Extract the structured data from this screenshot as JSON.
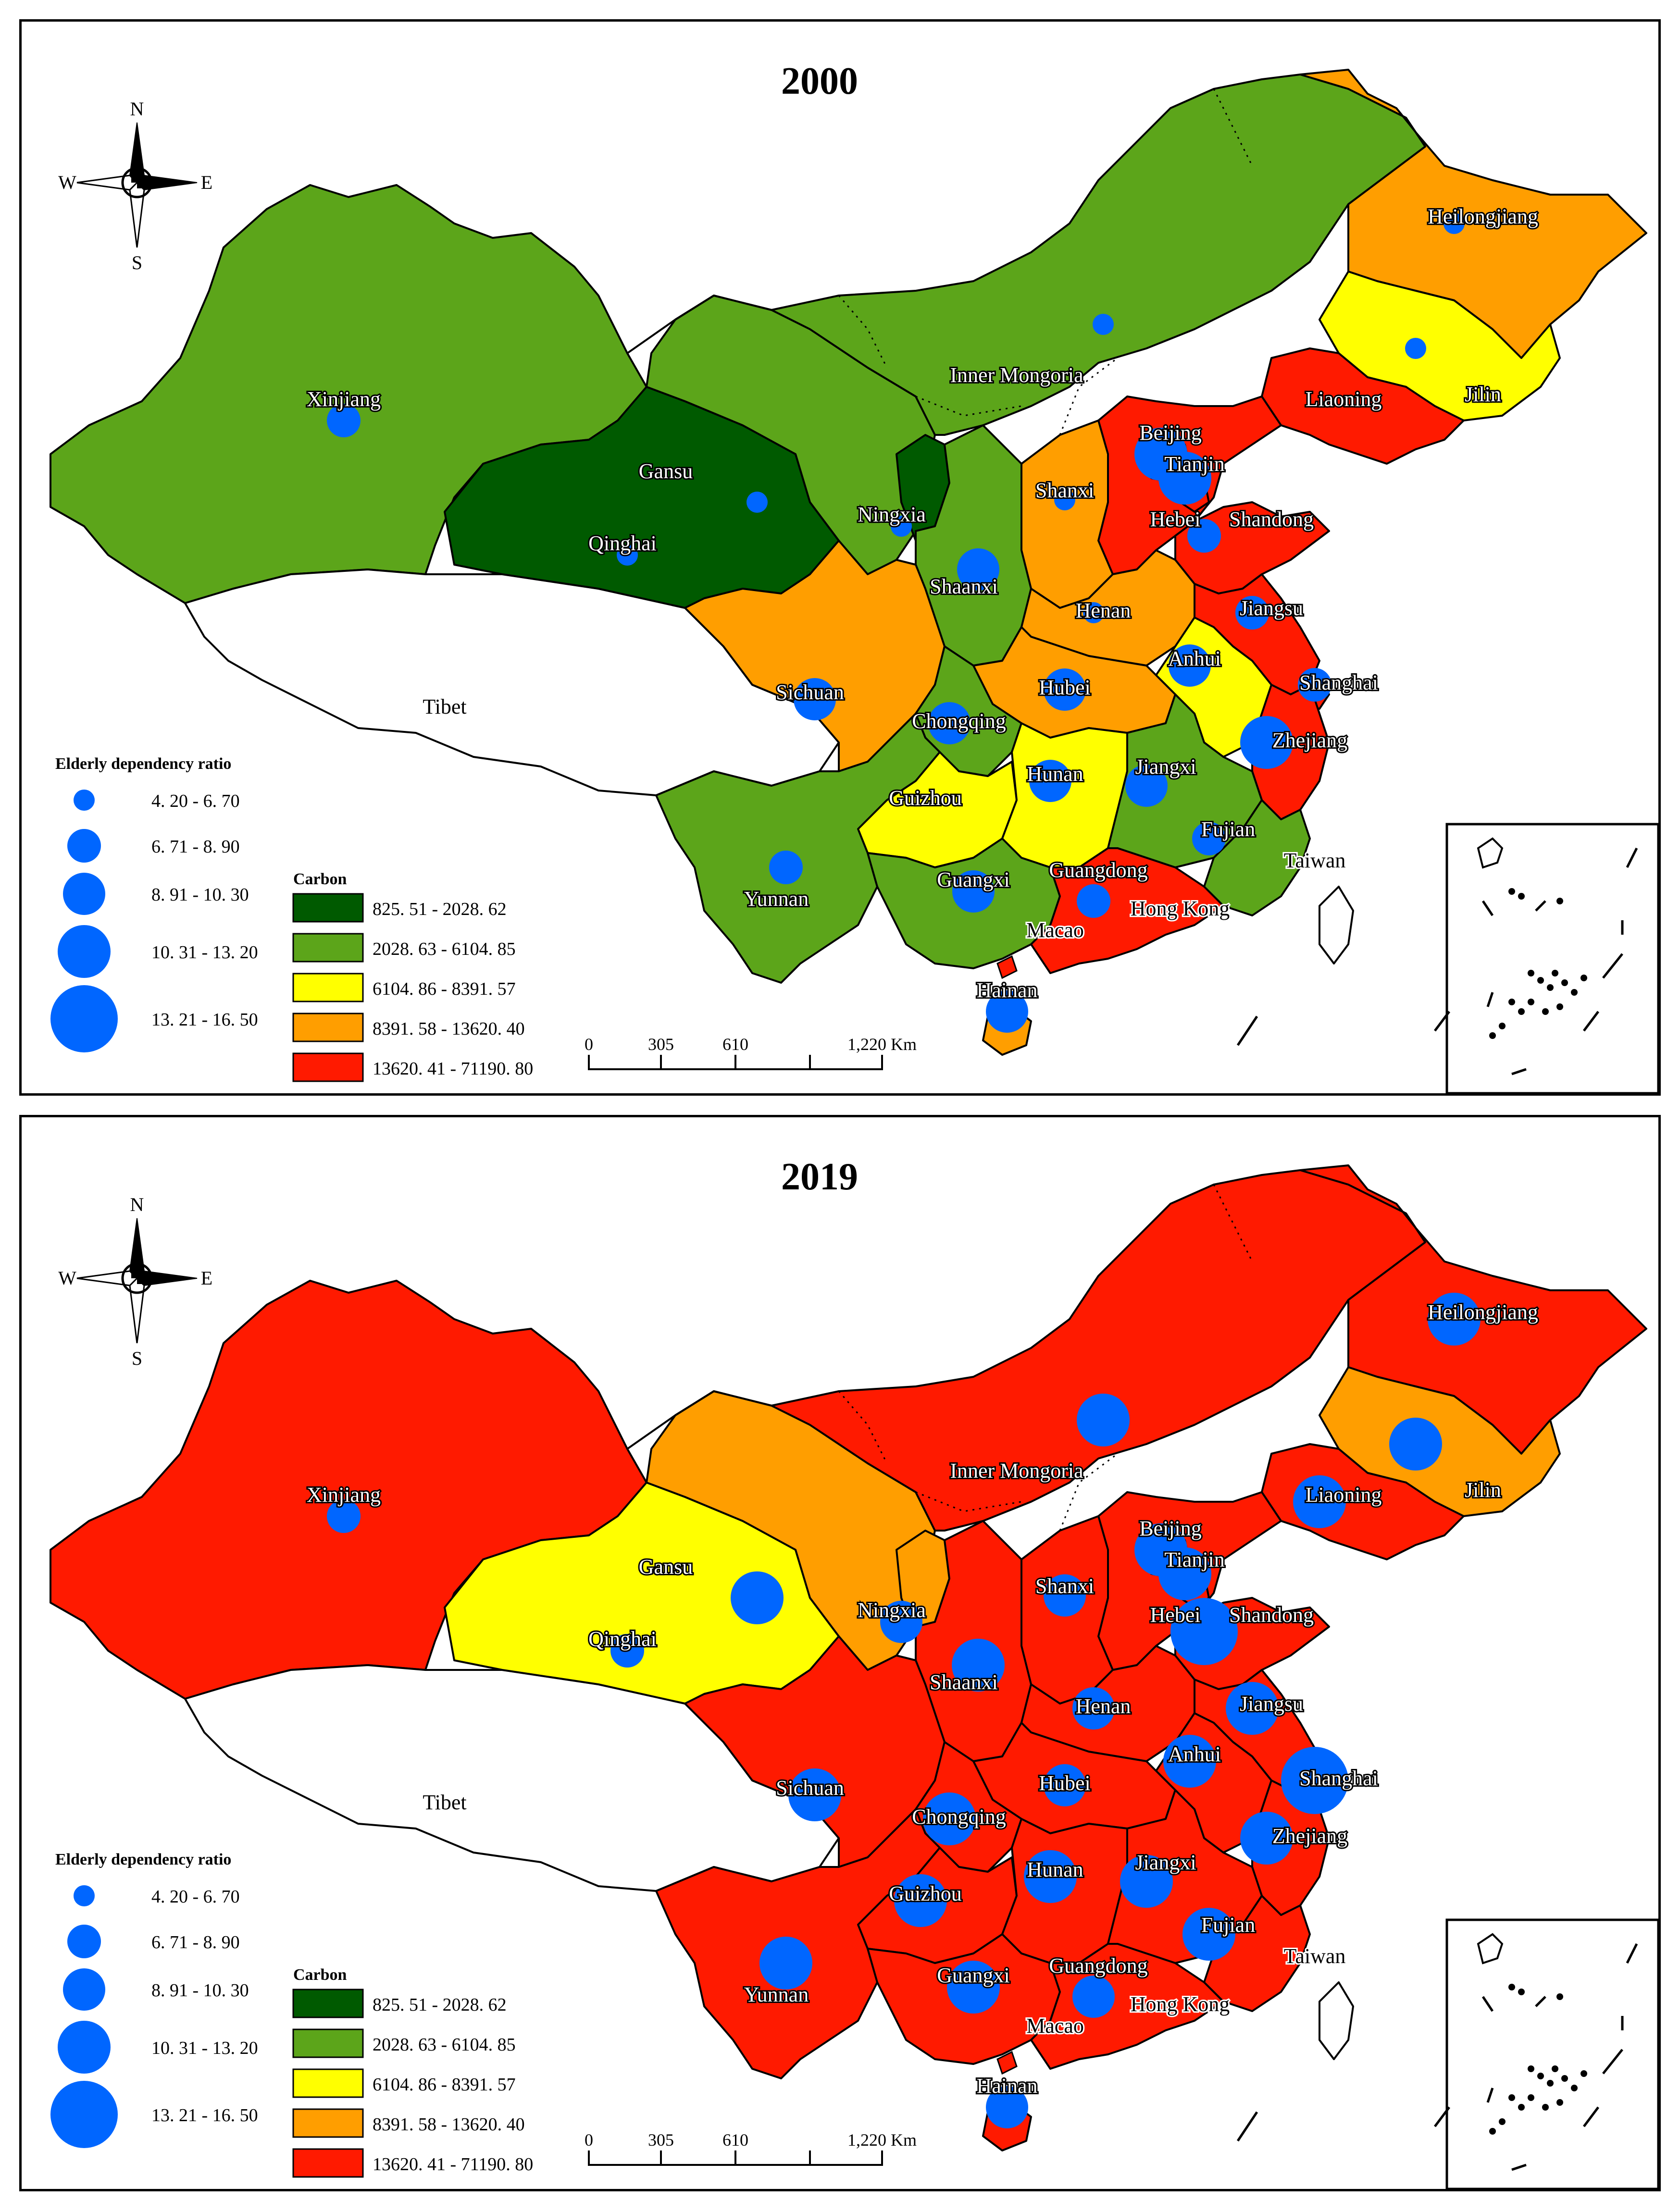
{
  "colors": {
    "carbon": [
      "#005a00",
      "#5ca51a",
      "#ffff00",
      "#ff9e00",
      "#ff1a00"
    ],
    "bubble": "#0066ff",
    "label_fill": "#ffffff",
    "label_stroke": "#000000"
  },
  "compass": {
    "n": "N",
    "s": "S",
    "e": "E",
    "w": "W"
  },
  "scalebar": {
    "ticks": [
      "0",
      "305",
      "610",
      "1,220 Km"
    ]
  },
  "legend": {
    "bubble_title": "Elderly dependency ratio",
    "bubble_classes": [
      "4. 20 - 6. 70",
      "6. 71 - 8. 90",
      "8. 91 - 10. 30",
      "10. 31 - 13. 20",
      "13. 21 - 16. 50"
    ],
    "carbon_title": "Carbon",
    "carbon_classes": [
      "825. 51 - 2028. 62",
      "2028. 63 - 6104. 85",
      "6104. 86 - 8391. 57",
      "8391. 58 - 13620. 40",
      "13620. 41 - 71190. 80"
    ]
  },
  "maps": [
    {
      "year": "2000",
      "regions": [
        {
          "name": "Xinjiang",
          "carbon_class": 1,
          "ratio_class": 1
        },
        {
          "name": "Tibet",
          "carbon_class": null,
          "ratio_class": null
        },
        {
          "name": "Qinghai",
          "carbon_class": 0,
          "ratio_class": 0
        },
        {
          "name": "Gansu",
          "carbon_class": 1,
          "ratio_class": 0
        },
        {
          "name": "Inner Mongoria",
          "carbon_class": 1,
          "ratio_class": 0
        },
        {
          "name": "Ningxia",
          "carbon_class": 0,
          "ratio_class": 0
        },
        {
          "name": "Heilongjiang",
          "carbon_class": 3,
          "ratio_class": 0
        },
        {
          "name": "Jilin",
          "carbon_class": 2,
          "ratio_class": 0
        },
        {
          "name": "Liaoning",
          "carbon_class": 4,
          "ratio_class": null
        },
        {
          "name": "Beijing",
          "carbon_class": 4,
          "ratio_class": 3
        },
        {
          "name": "Tianjin",
          "carbon_class": 4,
          "ratio_class": 3
        },
        {
          "name": "Hebei",
          "carbon_class": 4,
          "ratio_class": null
        },
        {
          "name": "Shanxi",
          "carbon_class": 3,
          "ratio_class": 0
        },
        {
          "name": "Shandong",
          "carbon_class": 4,
          "ratio_class": 1
        },
        {
          "name": "Shaanxi",
          "carbon_class": 1,
          "ratio_class": 2
        },
        {
          "name": "Henan",
          "carbon_class": 3,
          "ratio_class": 0
        },
        {
          "name": "Jiangsu",
          "carbon_class": 4,
          "ratio_class": 1
        },
        {
          "name": "Anhui",
          "carbon_class": 2,
          "ratio_class": 2
        },
        {
          "name": "Shanghai",
          "carbon_class": 4,
          "ratio_class": 1
        },
        {
          "name": "Hubei",
          "carbon_class": 3,
          "ratio_class": 2
        },
        {
          "name": "Sichuan",
          "carbon_class": 3,
          "ratio_class": 2
        },
        {
          "name": "Chongqing",
          "carbon_class": 1,
          "ratio_class": 2
        },
        {
          "name": "Zhejiang",
          "carbon_class": 4,
          "ratio_class": 3
        },
        {
          "name": "Guizhou",
          "carbon_class": 2,
          "ratio_class": null
        },
        {
          "name": "Hunan",
          "carbon_class": 2,
          "ratio_class": 2
        },
        {
          "name": "Jiangxi",
          "carbon_class": 1,
          "ratio_class": 2
        },
        {
          "name": "Fujian",
          "carbon_class": 1,
          "ratio_class": 1
        },
        {
          "name": "Yunnan",
          "carbon_class": 1,
          "ratio_class": 1
        },
        {
          "name": "Guangxi",
          "carbon_class": 1,
          "ratio_class": 2
        },
        {
          "name": "Guangdong",
          "carbon_class": 4,
          "ratio_class": 1
        },
        {
          "name": "Taiwan",
          "carbon_class": null,
          "ratio_class": null
        },
        {
          "name": "Hong Kong",
          "carbon_class": null,
          "ratio_class": null
        },
        {
          "name": "Macao",
          "carbon_class": null,
          "ratio_class": null
        },
        {
          "name": "Hainan",
          "carbon_class": 3,
          "ratio_class": 2
        }
      ]
    },
    {
      "year": "2019",
      "regions": [
        {
          "name": "Xinjiang",
          "carbon_class": 4,
          "ratio_class": 1
        },
        {
          "name": "Tibet",
          "carbon_class": null,
          "ratio_class": null
        },
        {
          "name": "Qinghai",
          "carbon_class": 2,
          "ratio_class": 1
        },
        {
          "name": "Gansu",
          "carbon_class": 3,
          "ratio_class": 3
        },
        {
          "name": "Inner Mongoria",
          "carbon_class": 4,
          "ratio_class": 3
        },
        {
          "name": "Ningxia",
          "carbon_class": 3,
          "ratio_class": 2
        },
        {
          "name": "Heilongjiang",
          "carbon_class": 4,
          "ratio_class": 3
        },
        {
          "name": "Jilin",
          "carbon_class": 3,
          "ratio_class": 3
        },
        {
          "name": "Liaoning",
          "carbon_class": 4,
          "ratio_class": 3
        },
        {
          "name": "Beijing",
          "carbon_class": 4,
          "ratio_class": 3
        },
        {
          "name": "Tianjin",
          "carbon_class": 4,
          "ratio_class": 3
        },
        {
          "name": "Hebei",
          "carbon_class": 4,
          "ratio_class": null
        },
        {
          "name": "Shanxi",
          "carbon_class": 4,
          "ratio_class": 2
        },
        {
          "name": "Shandong",
          "carbon_class": 4,
          "ratio_class": 4
        },
        {
          "name": "Shaanxi",
          "carbon_class": 4,
          "ratio_class": 3
        },
        {
          "name": "Henan",
          "carbon_class": 4,
          "ratio_class": 2
        },
        {
          "name": "Jiangsu",
          "carbon_class": 4,
          "ratio_class": 3
        },
        {
          "name": "Anhui",
          "carbon_class": 4,
          "ratio_class": 3
        },
        {
          "name": "Shanghai",
          "carbon_class": 4,
          "ratio_class": 4
        },
        {
          "name": "Hubei",
          "carbon_class": 4,
          "ratio_class": 2
        },
        {
          "name": "Sichuan",
          "carbon_class": 4,
          "ratio_class": 3
        },
        {
          "name": "Chongqing",
          "carbon_class": 4,
          "ratio_class": 3
        },
        {
          "name": "Zhejiang",
          "carbon_class": 4,
          "ratio_class": 3
        },
        {
          "name": "Guizhou",
          "carbon_class": 4,
          "ratio_class": 3
        },
        {
          "name": "Hunan",
          "carbon_class": 4,
          "ratio_class": 3
        },
        {
          "name": "Jiangxi",
          "carbon_class": 4,
          "ratio_class": 3
        },
        {
          "name": "Fujian",
          "carbon_class": 4,
          "ratio_class": 3
        },
        {
          "name": "Yunnan",
          "carbon_class": 4,
          "ratio_class": 3
        },
        {
          "name": "Guangxi",
          "carbon_class": 4,
          "ratio_class": 3
        },
        {
          "name": "Guangdong",
          "carbon_class": 4,
          "ratio_class": 2
        },
        {
          "name": "Taiwan",
          "carbon_class": null,
          "ratio_class": null
        },
        {
          "name": "Hong Kong",
          "carbon_class": null,
          "ratio_class": null
        },
        {
          "name": "Macao",
          "carbon_class": null,
          "ratio_class": null
        },
        {
          "name": "Hainan",
          "carbon_class": 4,
          "ratio_class": 2
        }
      ]
    }
  ]
}
